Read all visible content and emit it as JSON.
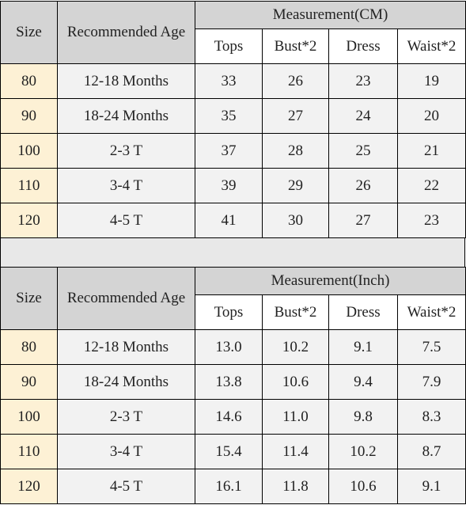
{
  "tables": [
    {
      "size_header": "Size",
      "age_header": "Recommended Age",
      "measurement_header": "Measurement(CM)",
      "columns": [
        "Tops",
        "Bust*2",
        "Dress",
        "Waist*2"
      ],
      "rows": [
        [
          "80",
          "12-18 Months",
          "33",
          "26",
          "23",
          "19"
        ],
        [
          "90",
          "18-24 Months",
          "35",
          "27",
          "24",
          "20"
        ],
        [
          "100",
          "2-3 T",
          "37",
          "28",
          "25",
          "21"
        ],
        [
          "110",
          "3-4 T",
          "39",
          "29",
          "26",
          "22"
        ],
        [
          "120",
          "4-5 T",
          "41",
          "30",
          "27",
          "23"
        ]
      ]
    },
    {
      "size_header": "Size",
      "age_header": "Recommended Age",
      "measurement_header": "Measurement(Inch)",
      "columns": [
        "Tops",
        "Bust*2",
        "Dress",
        "Waist*2"
      ],
      "rows": [
        [
          "80",
          "12-18 Months",
          "13.0",
          "10.2",
          "9.1",
          "7.5"
        ],
        [
          "90",
          "18-24 Months",
          "13.8",
          "10.6",
          "9.4",
          "7.9"
        ],
        [
          "100",
          "2-3 T",
          "14.6",
          "11.0",
          "9.8",
          "8.3"
        ],
        [
          "110",
          "3-4 T",
          "15.4",
          "11.4",
          "10.2",
          "8.7"
        ],
        [
          "120",
          "4-5 T",
          "16.1",
          "11.8",
          "10.6",
          "9.1"
        ]
      ]
    }
  ],
  "colors": {
    "header_bg": "#d4d4d4",
    "size_cell_bg": "#fdf1d5",
    "body_bg": "#f2f2f2",
    "separator_bg": "#e8e8e8",
    "border": "#000000"
  }
}
